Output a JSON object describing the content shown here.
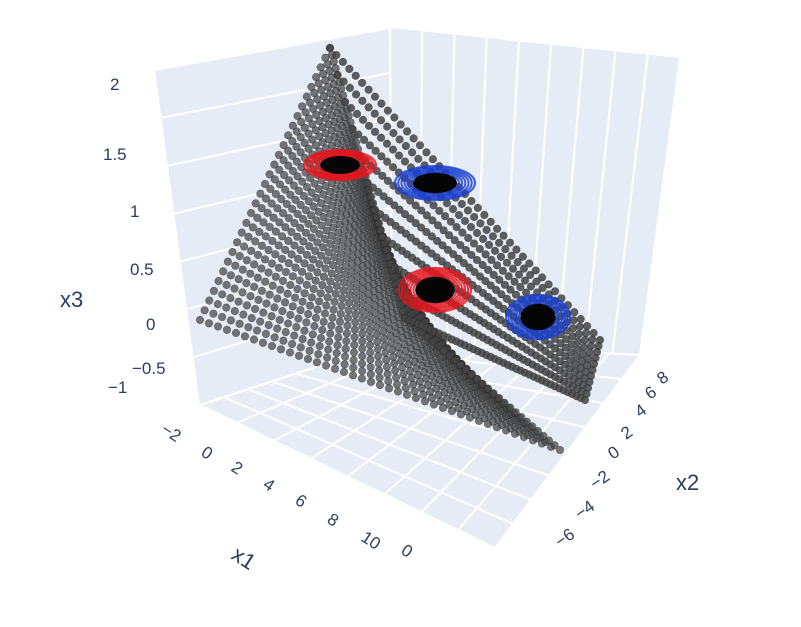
{
  "chart_data": {
    "type": "scatter3d",
    "background_color": "#e5ecf6",
    "grid_color": "#ffffff",
    "axes": {
      "x1": {
        "title": "x1",
        "ticks": [
          "−2",
          "0",
          "2",
          "4",
          "6",
          "8",
          "10",
          "0"
        ],
        "range": [
          -2,
          12
        ]
      },
      "x2": {
        "title": "x2",
        "ticks": [
          "−6",
          "−4",
          "−2",
          "0",
          "2",
          "4",
          "6",
          "8"
        ],
        "range": [
          -6,
          8
        ]
      },
      "x3": {
        "title": "x3",
        "ticks": [
          "−1",
          "−0.5",
          "0",
          "0.5",
          "1",
          "1.5",
          "2"
        ],
        "range": [
          -1,
          2
        ]
      }
    },
    "series": [
      {
        "role": "surface points",
        "color": "#444444",
        "opacity": 0.7,
        "description_points": "dense sampled surface of points"
      },
      {
        "role": "cluster",
        "color": "#e8141c",
        "centers_x1_x2_x3": [
          [
            1,
            -1,
            1.6
          ],
          [
            6,
            2,
            0.3
          ]
        ]
      },
      {
        "role": "cluster",
        "color": "#1a3fd0",
        "centers_x1_x2_x3": [
          [
            3,
            4,
            1.4
          ],
          [
            9,
            6,
            0.2
          ]
        ]
      }
    ]
  }
}
